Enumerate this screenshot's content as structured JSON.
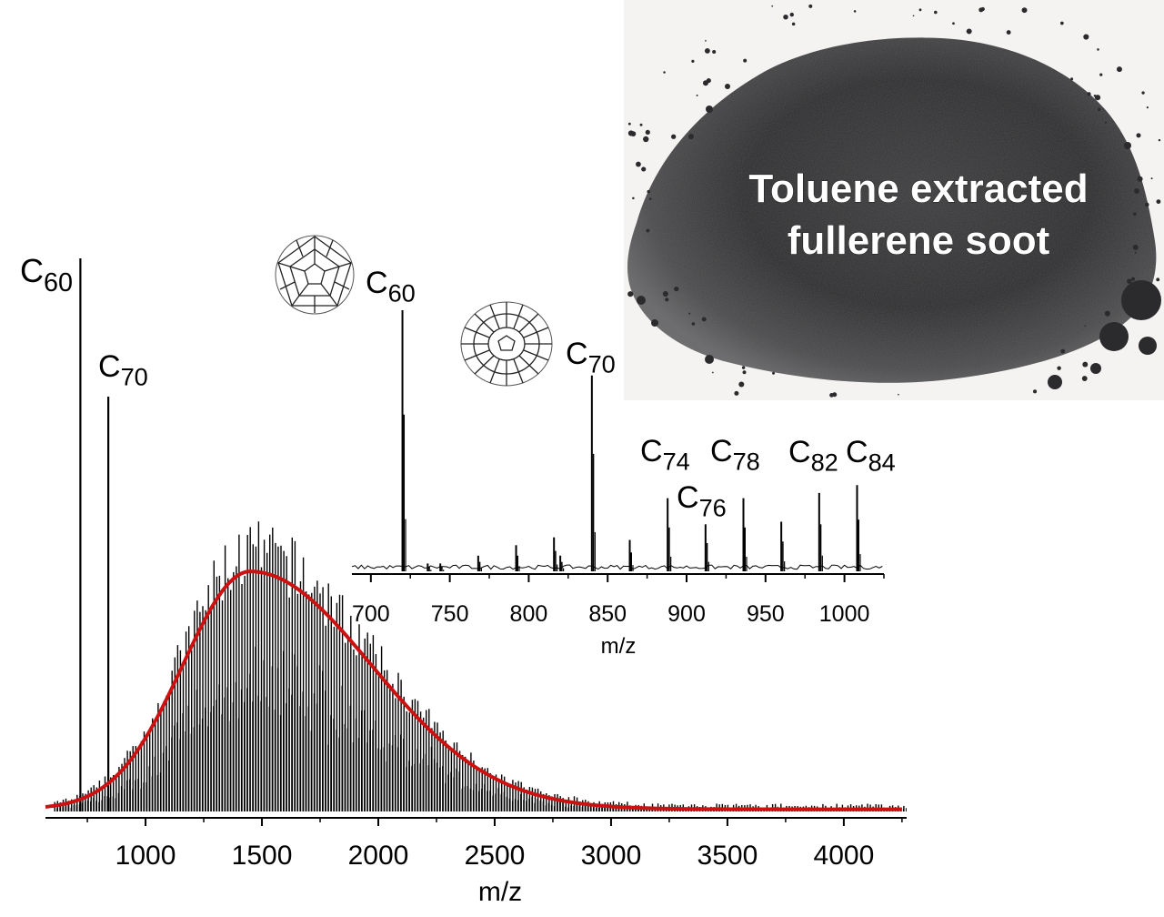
{
  "photo": {
    "caption_lines": [
      "Toluene extracted",
      "fullerene soot"
    ],
    "icon": "soot-pile-photo"
  },
  "chart_data": [
    {
      "type": "line",
      "id": "main",
      "xlabel": "m/z",
      "ylabel": "",
      "xlim": [
        570,
        4270
      ],
      "ylim": [
        0,
        100
      ],
      "xticks": [
        1000,
        1500,
        2000,
        2500,
        3000,
        3500,
        4000
      ],
      "grid": false,
      "series": [
        {
          "kind": "spectrum",
          "color": "#000000",
          "peaks": [
            {
              "x": 720,
              "y": 100,
              "label": "C",
              "sub": "60"
            },
            {
              "x": 840,
              "y": 75,
              "label": "C",
              "sub": "70"
            }
          ],
          "envelope": {
            "peak_x": 1450,
            "peak_y": 46,
            "sigma_left": 290,
            "sigma_right": 520
          }
        },
        {
          "kind": "fit",
          "color": "#cc1111",
          "peak_x": 1450,
          "peak_y": 43,
          "sigma_left": 290,
          "sigma_right": 520
        }
      ]
    },
    {
      "type": "line",
      "id": "inset",
      "xlabel": "m/z",
      "ylabel": "",
      "xlim": [
        688,
        1025
      ],
      "ylim": [
        0,
        100
      ],
      "xticks": [
        700,
        750,
        800,
        850,
        900,
        950,
        1000
      ],
      "grid": false,
      "peaks": [
        {
          "x": 720,
          "y": 100,
          "label": "C",
          "sub": "60"
        },
        {
          "x": 736,
          "y": 3
        },
        {
          "x": 744,
          "y": 3
        },
        {
          "x": 768,
          "y": 6
        },
        {
          "x": 792,
          "y": 10
        },
        {
          "x": 816,
          "y": 13
        },
        {
          "x": 820,
          "y": 6
        },
        {
          "x": 840,
          "y": 75,
          "label": "C",
          "sub": "70"
        },
        {
          "x": 864,
          "y": 12
        },
        {
          "x": 888,
          "y": 28,
          "label": "C",
          "sub": "74"
        },
        {
          "x": 912,
          "y": 18,
          "label": "C",
          "sub": "76"
        },
        {
          "x": 936,
          "y": 28,
          "label": "C",
          "sub": "78"
        },
        {
          "x": 960,
          "y": 19
        },
        {
          "x": 984,
          "y": 30,
          "label": "C",
          "sub": "82"
        },
        {
          "x": 1008,
          "y": 33,
          "label": "C",
          "sub": "84"
        }
      ]
    }
  ],
  "molecules": [
    {
      "name": "C60",
      "icon": "buckyball-c60-icon"
    },
    {
      "name": "C70",
      "icon": "fullerene-c70-icon"
    }
  ]
}
